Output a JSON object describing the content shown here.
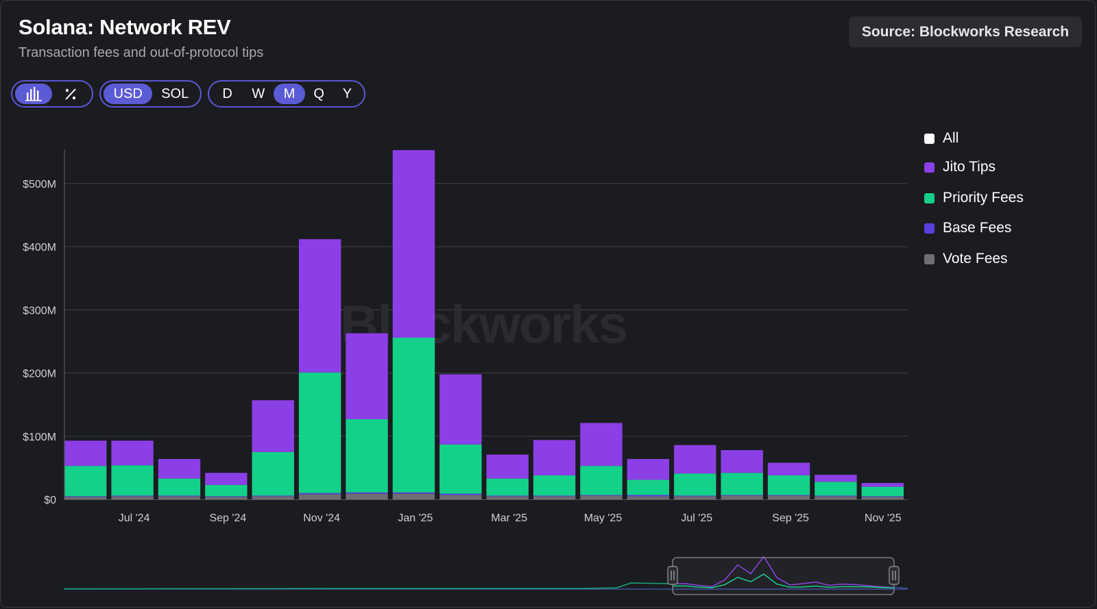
{
  "header": {
    "title": "Solana: Network REV",
    "subtitle": "Transaction fees and out-of-protocol tips",
    "source": "Source: Blockworks Research"
  },
  "controls": {
    "chart_modes": [
      {
        "icon": "bar-chart-icon",
        "active": true
      },
      {
        "icon": "percent-icon",
        "active": false
      }
    ],
    "currency": [
      {
        "label": "USD",
        "active": true
      },
      {
        "label": "SOL",
        "active": false
      }
    ],
    "intervals": [
      {
        "label": "D",
        "active": false
      },
      {
        "label": "W",
        "active": false
      },
      {
        "label": "M",
        "active": true
      },
      {
        "label": "Q",
        "active": false
      },
      {
        "label": "Y",
        "active": false
      }
    ]
  },
  "legend": [
    {
      "label": "All",
      "color": "#ffffff"
    },
    {
      "label": "Jito Tips",
      "color": "#8c3fe6"
    },
    {
      "label": "Priority Fees",
      "color": "#14d18a"
    },
    {
      "label": "Base Fees",
      "color": "#5a3ee0"
    },
    {
      "label": "Vote Fees",
      "color": "#6e6e73"
    }
  ],
  "watermark": "Blockworks",
  "chart_data": {
    "type": "bar",
    "stacked": true,
    "categories": [
      "Jun '24",
      "Jul '24",
      "Aug '24",
      "Sep '24",
      "Oct '24",
      "Nov '24",
      "Dec '24",
      "Jan '25",
      "Feb '25",
      "Mar '25",
      "Apr '25",
      "May '25",
      "Jun '25",
      "Jul '25",
      "Aug '25",
      "Sep '25",
      "Oct '25",
      "Nov '25"
    ],
    "tick_labels": [
      "Jul '24",
      "Sep '24",
      "Nov '24",
      "Jan '25",
      "Mar '25",
      "May '25",
      "Jul '25",
      "Sep '25",
      "Nov '25"
    ],
    "y_tick_labels": [
      "$0",
      "$100M",
      "$200M",
      "$300M",
      "$400M",
      "$500M"
    ],
    "y_ticks": [
      0,
      100,
      200,
      300,
      400,
      500
    ],
    "ylim": [
      0,
      550
    ],
    "unit": "USD millions",
    "grid": true,
    "legend_position": "right",
    "series": [
      {
        "name": "Vote Fees",
        "color": "#6e6e73",
        "values": [
          4,
          5,
          5,
          4,
          5,
          8,
          9,
          9,
          7,
          5,
          5,
          6,
          5,
          5,
          6,
          6,
          5,
          4
        ]
      },
      {
        "name": "Base Fees",
        "color": "#5a3ee0",
        "values": [
          1,
          1,
          1,
          1,
          1,
          2,
          2,
          2,
          2,
          1,
          1,
          1,
          2,
          1,
          1,
          1,
          1,
          1
        ]
      },
      {
        "name": "Priority Fees",
        "color": "#14d18a",
        "values": [
          48,
          48,
          27,
          18,
          69,
          191,
          116,
          245,
          78,
          27,
          32,
          46,
          24,
          35,
          35,
          31,
          22,
          15
        ]
      },
      {
        "name": "Jito Tips",
        "color": "#8c3fe6",
        "values": [
          40,
          39,
          31,
          19,
          82,
          211,
          136,
          297,
          111,
          38,
          56,
          68,
          33,
          45,
          36,
          20,
          11,
          6
        ]
      }
    ]
  },
  "navigator": {
    "window_start": "Jun '24",
    "window_end": "Nov '25"
  }
}
